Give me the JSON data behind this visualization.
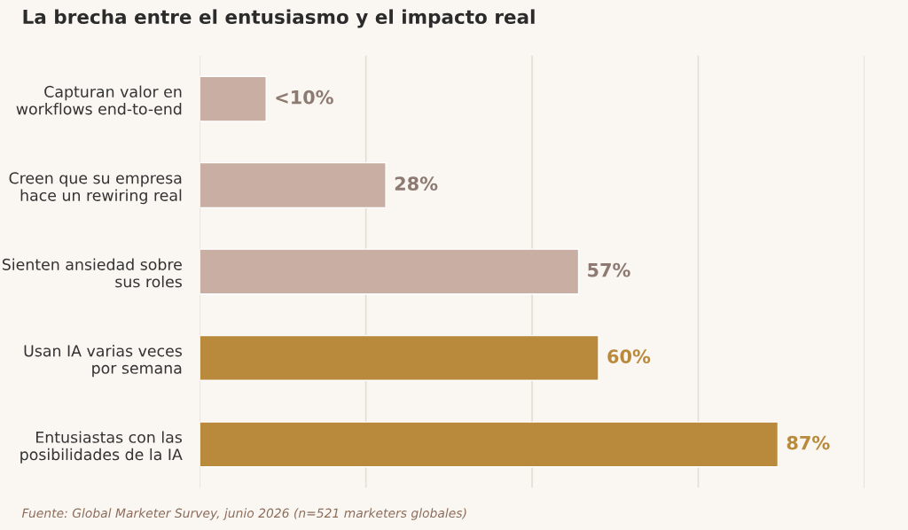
{
  "chart_data": {
    "type": "bar",
    "orientation": "horizontal",
    "title": "La brecha entre el entusiasmo y el impacto real",
    "categories": [
      "Capturan valor en\nworkflows end-to-end",
      "Creen que su empresa\nhace un rewiring real",
      "Sienten ansiedad sobre\nsus roles",
      "Usan IA varias veces\npor semana",
      "Entusiastas con las\nposibilidades de la IA"
    ],
    "values": [
      10,
      28,
      57,
      60,
      87
    ],
    "value_labels": [
      "<10%",
      "28%",
      "57%",
      "60%",
      "87%"
    ],
    "colors": [
      "#c9afa3",
      "#c9afa3",
      "#c9afa3",
      "#b98a3c",
      "#b98a3c"
    ],
    "xlim": [
      0,
      100
    ],
    "xticks": [
      {
        "value": 0,
        "label": null
      },
      {
        "value": 25,
        "label": null
      },
      {
        "value": 50,
        "label": null
      },
      {
        "value": 75,
        "label": null
      },
      {
        "value": 100,
        "label": null
      }
    ],
    "grid": "x",
    "tick_labels": "y",
    "annotations": [
      "Fuente: Global Marketer Survey, junio 2026 (n=521 marketers globales)"
    ]
  }
}
